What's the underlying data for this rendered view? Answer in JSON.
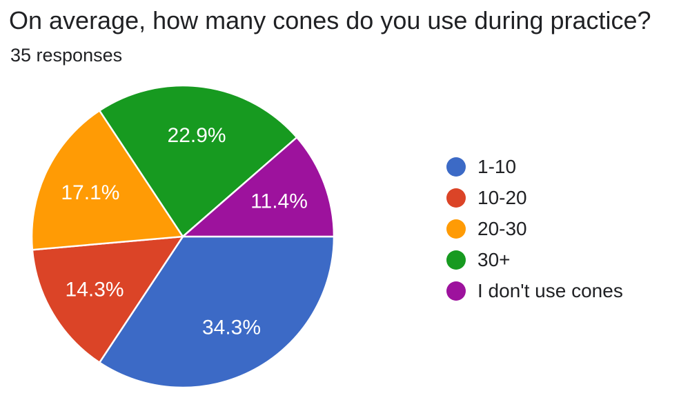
{
  "header": {
    "title": "On average, how many cones do you use during practice?",
    "responses": "35 responses"
  },
  "chart_data": {
    "type": "pie",
    "title": "On average, how many cones do you use during practice?",
    "subtitle": "35 responses",
    "total_responses": 35,
    "categories": [
      "1-10",
      "10-20",
      "20-30",
      "30+",
      "I don't use cones"
    ],
    "values": [
      34.3,
      14.3,
      17.1,
      22.9,
      11.4
    ],
    "slice_labels": [
      "34.3%",
      "14.3%",
      "17.1%",
      "22.9%",
      "11.4%"
    ],
    "colors": [
      "#3c6ac6",
      "#db4427",
      "#ff9b05",
      "#179a20",
      "#9d129d"
    ],
    "slice_label_color": "#ffffff",
    "divider_color": "#ffffff",
    "legend_position": "right",
    "start_angle_deg": 0,
    "direction": "clockwise"
  }
}
